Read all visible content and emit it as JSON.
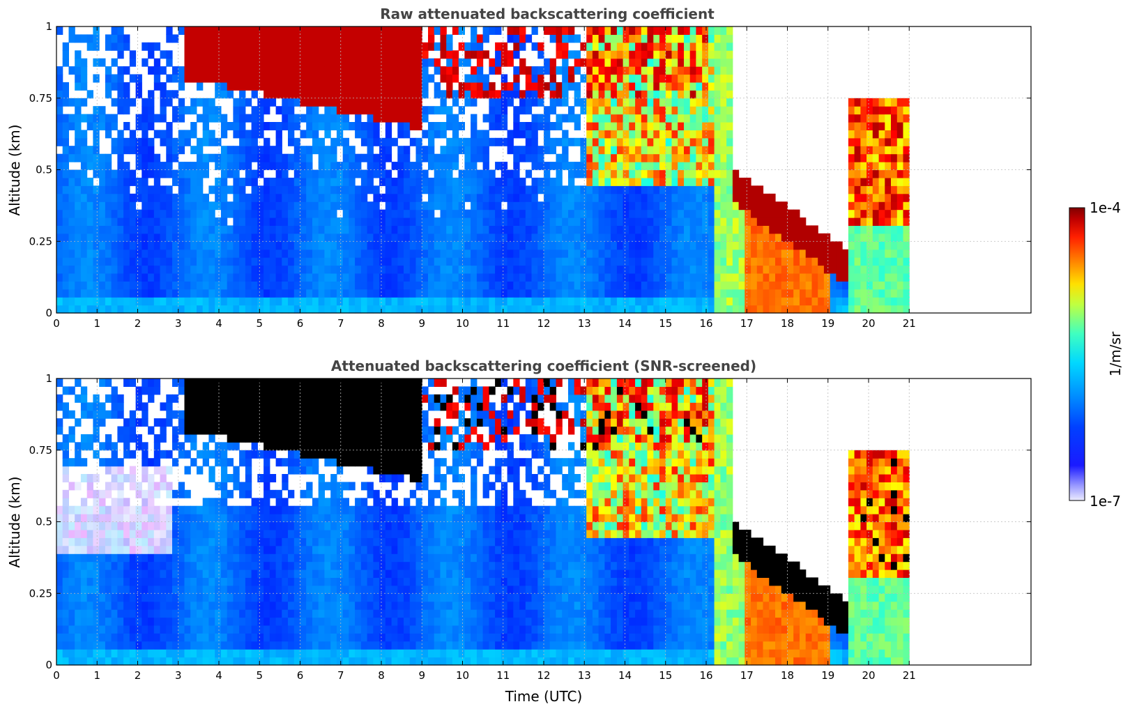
{
  "chart_data": [
    {
      "type": "heatmap",
      "title": "Raw attenuated backscattering coefficient",
      "xlabel": "",
      "ylabel": "Altitude (km)",
      "xlim": [
        0,
        24
      ],
      "ylim": [
        0,
        1
      ],
      "x_ticks": [
        "0",
        "1",
        "2",
        "3",
        "4",
        "5",
        "6",
        "7",
        "8",
        "9",
        "10",
        "11",
        "12",
        "13",
        "14",
        "15",
        "16",
        "17",
        "18",
        "19",
        "20",
        "21"
      ],
      "y_ticks": [
        "0",
        "0.25",
        "0.5",
        "0.75",
        "1"
      ],
      "data_extent_hours": [
        0,
        21
      ],
      "grid": true,
      "features": [
        {
          "label": "Noisy low-signal region above ~0.3 km",
          "time": [
            0,
            8
          ],
          "altitude": [
            0.3,
            1.0
          ]
        },
        {
          "label": "Elevated aerosol layer",
          "time": [
            3.2,
            9
          ],
          "altitude": [
            0.8,
            1.0
          ]
        },
        {
          "label": "Strong signal layer descending",
          "time": [
            16.5,
            19.5
          ],
          "altitude": [
            0.15,
            0.5
          ]
        },
        {
          "label": "Near-surface high backscatter",
          "time": [
            17,
            19
          ],
          "altitude": [
            0.0,
            0.25
          ]
        }
      ]
    },
    {
      "type": "heatmap",
      "title": "Attenuated backscattering coefficient (SNR-screened)",
      "xlabel": "Time (UTC)",
      "ylabel": "Altitude (km)",
      "xlim": [
        0,
        24
      ],
      "ylim": [
        0,
        1
      ],
      "x_ticks": [
        "0",
        "1",
        "2",
        "3",
        "4",
        "5",
        "6",
        "7",
        "8",
        "9",
        "10",
        "11",
        "12",
        "13",
        "14",
        "15",
        "16",
        "17",
        "18",
        "19",
        "20",
        "21"
      ],
      "y_ticks": [
        "0",
        "0.25",
        "0.5",
        "0.75",
        "1"
      ],
      "data_extent_hours": [
        0,
        21
      ],
      "grid": true,
      "features": [
        {
          "label": "Screened (no data) regions",
          "time": [
            0,
            13
          ],
          "altitude": [
            0.6,
            1.0
          ]
        },
        {
          "label": "Saturated (black) cloud layer",
          "time": [
            17,
            19.5
          ],
          "altitude": [
            0.15,
            0.4
          ]
        }
      ]
    }
  ],
  "colorbar": {
    "label": "1/m/sr",
    "min_label": "1e-7",
    "max_label": "1e-4",
    "scale": "log",
    "colors": [
      "#ececff",
      "#b7b7ff",
      "#7f7fff",
      "#1e1eff",
      "#0000ff",
      "#0a4bff",
      "#0090ff",
      "#00c8ff",
      "#20ffdf",
      "#80ff80",
      "#dfff20",
      "#ffd000",
      "#ff9000",
      "#ff4000",
      "#e80000",
      "#a00000",
      "#800000"
    ]
  }
}
